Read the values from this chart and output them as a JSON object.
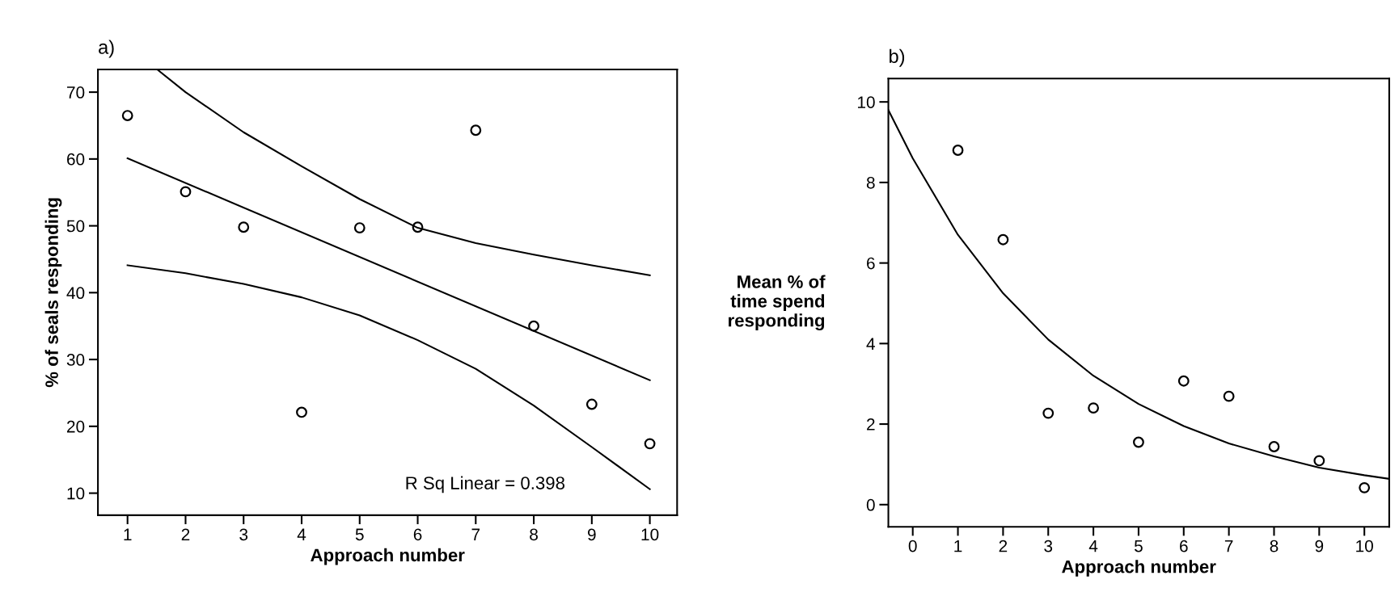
{
  "chart_data": [
    {
      "type": "scatter",
      "title": "a)",
      "xlabel": "Approach number",
      "ylabel": "% of seals responding",
      "annotations": [
        "R Sq Linear = 0.398"
      ],
      "xlim": [
        0.49,
        10.47
      ],
      "ylim": [
        6.7,
        73.4
      ],
      "xticks": [
        1,
        2,
        3,
        4,
        5,
        6,
        7,
        8,
        9,
        10
      ],
      "yticks": [
        10,
        20,
        30,
        40,
        50,
        60,
        70
      ],
      "grid": false,
      "legend": false,
      "series": [
        {
          "color": "#000000",
          "marker": "circle",
          "x": [
            1,
            2,
            3,
            4,
            5,
            6,
            7,
            8,
            9,
            10
          ],
          "values": [
            66.5,
            55.1,
            49.8,
            22.1,
            49.7,
            49.8,
            64.3,
            35.0,
            23.3,
            17.4
          ]
        },
        {
          "type": "line",
          "color": "#000000",
          "marker": "none",
          "line_style": "solid",
          "x": [
            1,
            10
          ],
          "values": [
            60.1,
            26.9
          ]
        },
        {
          "type": "line",
          "color": "#000000",
          "marker": "none",
          "line_style": "solid",
          "x": [
            1.51,
            2,
            3,
            4,
            5,
            6,
            7,
            8,
            9,
            10
          ],
          "values": [
            73.4,
            70,
            64,
            58.9,
            54,
            49.7,
            47.4,
            45.7,
            44.1,
            42.6
          ]
        },
        {
          "type": "line",
          "color": "#000000",
          "marker": "none",
          "line_style": "solid",
          "x": [
            1,
            2,
            3,
            4,
            5,
            6,
            7,
            8,
            9,
            10
          ],
          "values": [
            44.1,
            42.9,
            41.3,
            39.3,
            36.6,
            32.9,
            28.6,
            23.1,
            16.9,
            10.6
          ]
        }
      ]
    },
    {
      "type": "scatter",
      "title": "b)",
      "xlabel": "Approach number",
      "ylabel": "Mean % of\ntime spend\nresponding",
      "xlim": [
        -0.54,
        10.55
      ],
      "ylim": [
        -0.55,
        10.58
      ],
      "xticks": [
        0,
        1,
        2,
        3,
        4,
        5,
        6,
        7,
        8,
        9,
        10
      ],
      "yticks": [
        0,
        2,
        4,
        6,
        8,
        10
      ],
      "grid": false,
      "legend": false,
      "series": [
        {
          "color": "#000000",
          "marker": "circle",
          "x": [
            1,
            2,
            3,
            4,
            5,
            6,
            7,
            8,
            9,
            10
          ],
          "values": [
            8.8,
            6.58,
            2.27,
            2.4,
            1.55,
            3.07,
            2.69,
            1.44,
            1.09,
            0.42
          ]
        },
        {
          "type": "line",
          "color": "#000000",
          "marker": "none",
          "line_style": "solid",
          "x": [
            -0.54,
            0,
            1,
            2,
            3,
            4,
            5,
            6,
            7,
            8,
            9,
            10,
            10.55
          ],
          "values": [
            9.8,
            8.6,
            6.7,
            5.25,
            4.1,
            3.2,
            2.5,
            1.95,
            1.52,
            1.2,
            0.92,
            0.73,
            0.64
          ]
        }
      ]
    }
  ]
}
